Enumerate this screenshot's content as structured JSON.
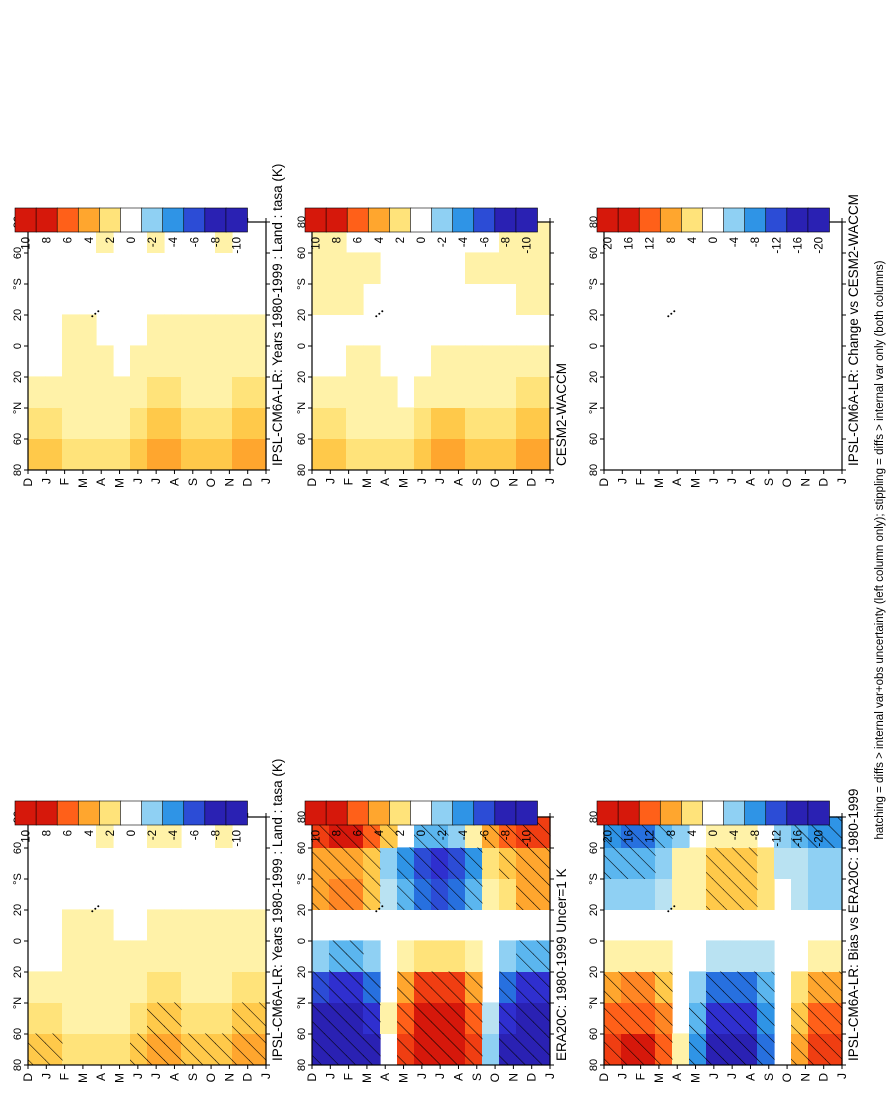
{
  "footnote": "hatching = diffs > internal var+obs uncertainty (left column only); stippling = diffs > internal var only (both columns)",
  "colors": {
    "pos": [
      "#ffffff",
      "#fff2a8",
      "#ffe37a",
      "#ffc94a",
      "#ffa62e",
      "#ff8624",
      "#ff6019",
      "#f03e12",
      "#d6180b"
    ],
    "neg": [
      "#ffffff",
      "#b9e2f2",
      "#8fd0f3",
      "#5bb6ef",
      "#2f94e6",
      "#2770df",
      "#2c4cd6",
      "#2f2fcf",
      "#2a21b3"
    ]
  },
  "chart_data": [
    {
      "type": "heatmap",
      "title": "IPSL-CM6A-LR: Years 1980-1999 : Land : tasa (K)",
      "x": [
        "D",
        "J",
        "F",
        "M",
        "A",
        "M",
        "J",
        "J",
        "A",
        "S",
        "O",
        "N",
        "D",
        "J"
      ],
      "y": [
        "80",
        "60",
        "°N",
        "20",
        "0",
        "20",
        "°S",
        "60",
        "80"
      ],
      "colorbar": [
        "10",
        "8",
        "6",
        "4",
        "2",
        "0",
        "-2",
        "-4",
        "-6",
        "-8",
        "-10"
      ],
      "levels_step": 1,
      "hatching": true,
      "stippling": true,
      "grid_mean": [
        [
          3,
          2,
          1,
          0,
          0,
          0,
          0,
          0
        ],
        [
          3,
          2,
          1,
          0,
          0,
          0,
          0,
          0
        ],
        [
          2,
          1,
          1,
          1,
          1,
          0,
          0,
          0
        ],
        [
          2,
          1,
          1,
          1,
          1,
          0,
          0,
          0
        ],
        [
          2,
          1,
          1,
          1,
          1,
          0,
          0,
          1
        ],
        [
          2,
          1,
          1,
          1,
          0,
          0,
          0,
          0
        ],
        [
          3,
          2,
          1,
          1,
          0,
          0,
          0,
          0
        ],
        [
          4,
          3,
          2,
          1,
          1,
          0,
          0,
          1
        ],
        [
          4,
          3,
          2,
          1,
          1,
          0,
          0,
          1
        ],
        [
          3,
          2,
          1,
          1,
          1,
          0,
          0,
          0
        ],
        [
          3,
          2,
          1,
          1,
          1,
          0,
          0,
          0
        ],
        [
          3,
          2,
          1,
          1,
          1,
          0,
          0,
          1
        ],
        [
          4,
          3,
          2,
          1,
          1,
          0,
          0,
          0
        ],
        [
          4,
          3,
          2,
          1,
          1,
          0,
          0,
          0
        ]
      ]
    },
    {
      "type": "heatmap",
      "title": "IPSL-CM6A-LR: Years 1980-1999 : Land : tasa (K)",
      "x": [
        "D",
        "J",
        "F",
        "M",
        "A",
        "M",
        "J",
        "J",
        "A",
        "S",
        "O",
        "N",
        "D",
        "J"
      ],
      "y": [
        "80",
        "60",
        "°N",
        "20",
        "0",
        "20",
        "°S",
        "60",
        "80"
      ],
      "colorbar": [
        "10",
        "8",
        "6",
        "4",
        "2",
        "0",
        "-2",
        "-4",
        "-6",
        "-8",
        "-10"
      ],
      "levels_step": 1,
      "stippling": true,
      "grid_mean": [
        [
          3,
          2,
          1,
          0,
          0,
          0,
          0,
          0
        ],
        [
          3,
          2,
          1,
          0,
          0,
          0,
          0,
          0
        ],
        [
          2,
          1,
          1,
          1,
          1,
          0,
          0,
          0
        ],
        [
          2,
          1,
          1,
          1,
          1,
          0,
          0,
          0
        ],
        [
          2,
          1,
          1,
          1,
          0,
          0,
          0,
          1
        ],
        [
          2,
          1,
          1,
          0,
          0,
          0,
          0,
          0
        ],
        [
          3,
          2,
          1,
          1,
          0,
          0,
          0,
          0
        ],
        [
          4,
          3,
          2,
          1,
          1,
          0,
          0,
          1
        ],
        [
          4,
          3,
          2,
          1,
          1,
          0,
          0,
          0
        ],
        [
          3,
          2,
          1,
          1,
          1,
          0,
          0,
          0
        ],
        [
          3,
          2,
          1,
          1,
          1,
          0,
          0,
          0
        ],
        [
          3,
          2,
          1,
          1,
          1,
          0,
          0,
          1
        ],
        [
          4,
          3,
          2,
          1,
          1,
          0,
          0,
          0
        ],
        [
          4,
          3,
          2,
          1,
          1,
          0,
          0,
          0
        ]
      ]
    },
    {
      "type": "heatmap",
      "title": "ERA20C: 1980-1999 Uncer=1 K",
      "x": [
        "D",
        "J",
        "F",
        "M",
        "A",
        "M",
        "J",
        "J",
        "A",
        "S",
        "O",
        "N",
        "D",
        "J"
      ],
      "y": [
        "80",
        "60",
        "°N",
        "20",
        "0",
        "20",
        "°S",
        "60",
        "80"
      ],
      "colorbar": [
        "10",
        "8",
        "6",
        "4",
        "2",
        "0",
        "-2",
        "-4",
        "-6",
        "-8",
        "-10"
      ],
      "levels_step": 1,
      "hatching": true,
      "stippling": true,
      "grid_mean": [
        [
          -9,
          -8,
          -6,
          -2,
          0,
          4,
          4,
          7
        ],
        [
          -10,
          -9,
          -7,
          -3,
          0,
          5,
          4,
          8
        ],
        [
          -10,
          -9,
          -7,
          -3,
          0,
          5,
          4,
          8
        ],
        [
          -8,
          -7,
          -5,
          -2,
          0,
          3,
          3,
          6
        ],
        [
          0,
          1,
          0,
          0,
          0,
          -1,
          -2,
          3
        ],
        [
          7,
          6,
          4,
          1,
          0,
          -3,
          -4,
          0
        ],
        [
          10,
          9,
          7,
          2,
          0,
          -5,
          -6,
          -3
        ],
        [
          10,
          9,
          7,
          2,
          0,
          -6,
          -7,
          -3
        ],
        [
          10,
          9,
          7,
          2,
          0,
          -5,
          -6,
          -2
        ],
        [
          7,
          6,
          4,
          1,
          0,
          -3,
          -4,
          1
        ],
        [
          -2,
          -1,
          0,
          0,
          0,
          1,
          2,
          4
        ],
        [
          -8,
          -7,
          -5,
          -2,
          0,
          2,
          3,
          6
        ],
        [
          -10,
          -9,
          -7,
          -3,
          0,
          4,
          4,
          7
        ],
        [
          -10,
          -9,
          -7,
          -3,
          0,
          4,
          4,
          7
        ]
      ]
    },
    {
      "type": "heatmap",
      "title": "CESM2-WACCM",
      "x": [
        "D",
        "J",
        "F",
        "M",
        "A",
        "M",
        "J",
        "J",
        "A",
        "S",
        "O",
        "N",
        "D",
        "J"
      ],
      "y": [
        "80",
        "60",
        "°N",
        "20",
        "0",
        "20",
        "°S",
        "60",
        "80"
      ],
      "colorbar": [
        "10",
        "8",
        "6",
        "4",
        "2",
        "0",
        "-2",
        "-4",
        "-6",
        "-8",
        "-10"
      ],
      "levels_step": 1,
      "stippling": true,
      "grid_mean": [
        [
          3,
          2,
          1,
          0,
          0,
          1,
          1,
          1
        ],
        [
          3,
          2,
          1,
          0,
          0,
          1,
          1,
          1
        ],
        [
          2,
          1,
          1,
          1,
          0,
          1,
          1,
          0
        ],
        [
          2,
          1,
          1,
          1,
          0,
          0,
          1,
          0
        ],
        [
          2,
          1,
          1,
          0,
          0,
          0,
          0,
          0
        ],
        [
          2,
          1,
          0,
          0,
          0,
          0,
          0,
          0
        ],
        [
          3,
          2,
          1,
          0,
          0,
          0,
          0,
          0
        ],
        [
          4,
          3,
          1,
          1,
          0,
          0,
          0,
          0
        ],
        [
          4,
          3,
          1,
          1,
          0,
          0,
          0,
          0
        ],
        [
          3,
          2,
          1,
          1,
          0,
          0,
          1,
          0
        ],
        [
          3,
          2,
          1,
          1,
          0,
          0,
          1,
          0
        ],
        [
          3,
          2,
          1,
          1,
          0,
          0,
          1,
          1
        ],
        [
          4,
          3,
          2,
          1,
          0,
          1,
          1,
          1
        ],
        [
          4,
          3,
          2,
          1,
          0,
          1,
          1,
          1
        ]
      ]
    },
    {
      "type": "heatmap",
      "title": "IPSL-CM6A-LR: Bias vs ERA20C: 1980-1999",
      "x": [
        "D",
        "J",
        "F",
        "M",
        "A",
        "M",
        "J",
        "J",
        "A",
        "S",
        "O",
        "N",
        "D",
        "J"
      ],
      "y": [
        "80",
        "60",
        "°N",
        "20",
        "0",
        "20",
        "°S",
        "60",
        "80"
      ],
      "colorbar": [
        "20",
        "16",
        "12",
        "8",
        "4",
        "0",
        "-4",
        "-8",
        "-12",
        "-16",
        "-20"
      ],
      "levels_step": 2,
      "hatching": true,
      "stippling": true,
      "grid_mean": [
        [
          14,
          12,
          8,
          2,
          0,
          -4,
          -6,
          -8
        ],
        [
          16,
          13,
          10,
          3,
          0,
          -5,
          -7,
          -10
        ],
        [
          16,
          13,
          10,
          3,
          0,
          -5,
          -7,
          -10
        ],
        [
          12,
          10,
          7,
          2,
          0,
          -3,
          -5,
          -7
        ],
        [
          2,
          1,
          0,
          0,
          0,
          2,
          2,
          -4
        ],
        [
          -8,
          -7,
          -4,
          -1,
          0,
          3,
          3,
          -1
        ],
        [
          -16,
          -14,
          -10,
          -3,
          0,
          6,
          6,
          2
        ],
        [
          -18,
          -15,
          -11,
          -3,
          0,
          7,
          7,
          2
        ],
        [
          -16,
          -14,
          -10,
          -3,
          0,
          6,
          6,
          2
        ],
        [
          -10,
          -8,
          -6,
          -2,
          0,
          4,
          4,
          -1
        ],
        [
          0,
          0,
          0,
          0,
          0,
          -1,
          -2,
          -4
        ],
        [
          8,
          7,
          5,
          1,
          0,
          -2,
          -3,
          -6
        ],
        [
          14,
          12,
          9,
          2,
          0,
          -4,
          -5,
          -8
        ],
        [
          14,
          12,
          9,
          2,
          0,
          -4,
          -5,
          -8
        ]
      ]
    },
    {
      "type": "heatmap",
      "title": "IPSL-CM6A-LR: Change vs CESM2-WACCM",
      "x": [
        "D",
        "J",
        "F",
        "M",
        "A",
        "M",
        "J",
        "J",
        "A",
        "S",
        "O",
        "N",
        "D",
        "J"
      ],
      "y": [
        "80",
        "60",
        "°N",
        "20",
        "0",
        "20",
        "°S",
        "60",
        "80"
      ],
      "colorbar": [
        "20",
        "16",
        "12",
        "8",
        "4",
        "0",
        "-4",
        "-8",
        "-12",
        "-16",
        "-20"
      ],
      "levels_step": 2,
      "stippling": true,
      "grid_mean": [
        [
          0,
          0,
          0,
          0,
          0,
          0,
          0,
          0
        ],
        [
          0,
          0,
          0,
          0,
          0,
          0,
          0,
          0
        ],
        [
          0,
          0,
          0,
          0,
          0,
          0,
          0,
          0
        ],
        [
          0,
          0,
          0,
          0,
          0,
          0,
          0,
          0
        ],
        [
          0,
          0,
          0,
          0,
          0,
          0,
          0,
          0
        ],
        [
          0,
          0,
          0,
          0,
          0,
          0,
          0,
          0
        ],
        [
          0,
          0,
          0,
          0,
          0,
          0,
          0,
          0
        ],
        [
          0,
          0,
          0,
          0,
          0,
          0,
          0,
          0
        ],
        [
          0,
          0,
          0,
          0,
          0,
          0,
          0,
          0
        ],
        [
          0,
          0,
          0,
          0,
          0,
          0,
          0,
          0
        ],
        [
          0,
          0,
          0,
          0,
          0,
          0,
          0,
          0
        ],
        [
          0,
          0,
          0,
          0,
          0,
          0,
          0,
          0
        ],
        [
          0,
          0,
          0,
          0,
          0,
          0,
          0,
          0
        ],
        [
          0,
          0,
          0,
          0,
          0,
          0,
          0,
          0
        ]
      ]
    }
  ]
}
